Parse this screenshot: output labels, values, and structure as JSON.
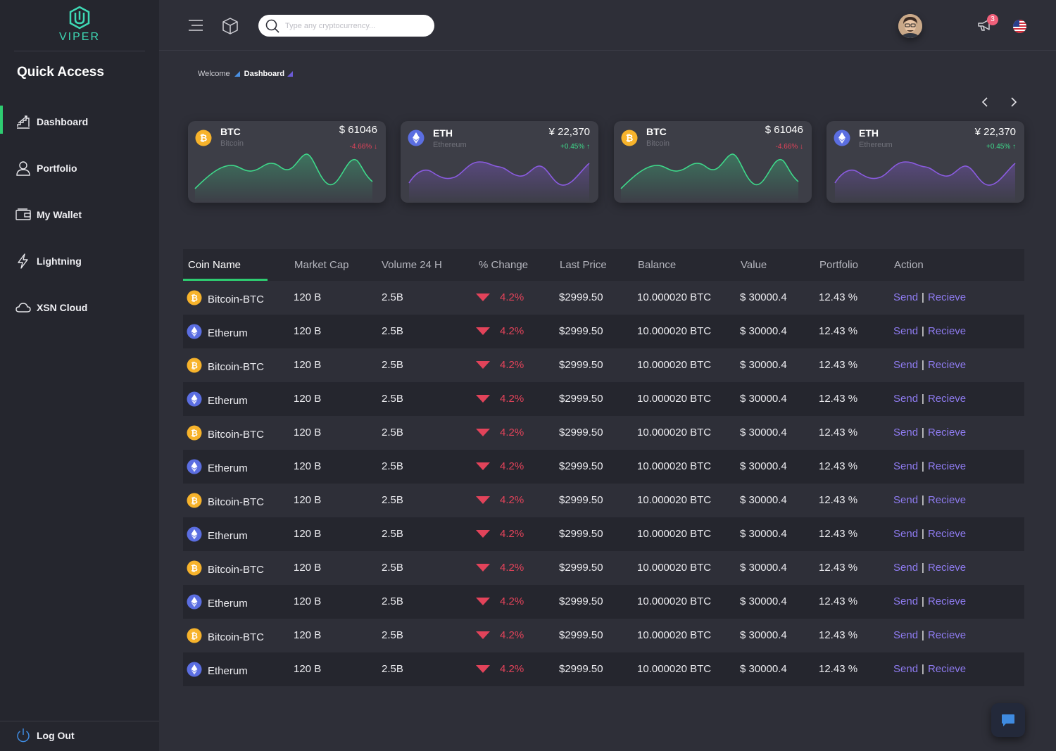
{
  "app": {
    "logo_text": "VIPER",
    "accent": "#2ecc71"
  },
  "sidebar": {
    "heading": "Quick Access",
    "items": [
      {
        "label": "Dashboard",
        "icon": "chart-stairs-icon",
        "active": true
      },
      {
        "label": "Portfolio",
        "icon": "user-icon"
      },
      {
        "label": "My Wallet",
        "icon": "wallet-icon"
      },
      {
        "label": "Lightning",
        "icon": "lightning-icon"
      },
      {
        "label": "XSN Cloud",
        "icon": "cloud-icon"
      }
    ],
    "logout_label": "Log Out"
  },
  "header": {
    "search_placeholder": "Type any cryptocurrency...",
    "notification_count": "3"
  },
  "breadcrumb": {
    "root": "Welcome",
    "current": "Dashboard"
  },
  "cards": [
    {
      "symbol": "BTC",
      "name": "Bitcoin",
      "price": "$ 61046",
      "change": "-4.66%",
      "direction": "down",
      "coin": "btc"
    },
    {
      "symbol": "ETH",
      "name": "Ethereum",
      "price": "¥ 22,370",
      "change": "+0.45%",
      "direction": "up",
      "coin": "eth"
    },
    {
      "symbol": "BTC",
      "name": "Bitcoin",
      "price": "$ 61046",
      "change": "-4.66%",
      "direction": "down",
      "coin": "btc"
    },
    {
      "symbol": "ETH",
      "name": "Ethereum",
      "price": "¥ 22,370",
      "change": "+0.45%",
      "direction": "up",
      "coin": "eth"
    }
  ],
  "table": {
    "headers": [
      "Coin Name",
      "Market Cap",
      "Volume 24 H",
      "% Change",
      "Last Price",
      "Balance",
      "Value",
      "Portfolio",
      "Action"
    ],
    "send_label": "Send",
    "receive_label": "Recieve",
    "rows": [
      {
        "coin": "btc",
        "name": "Bitcoin-BTC",
        "market_cap": "120 B",
        "volume": "2.5B",
        "change": "4.2%",
        "last_price": "$2999.50",
        "balance": "10.000020 BTC",
        "value": "$ 30000.4",
        "portfolio": "12.43 %"
      },
      {
        "coin": "eth",
        "name": "Etherum",
        "market_cap": "120 B",
        "volume": "2.5B",
        "change": "4.2%",
        "last_price": "$2999.50",
        "balance": "10.000020 BTC",
        "value": "$ 30000.4",
        "portfolio": "12.43 %"
      },
      {
        "coin": "btc",
        "name": "Bitcoin-BTC",
        "market_cap": "120 B",
        "volume": "2.5B",
        "change": "4.2%",
        "last_price": "$2999.50",
        "balance": "10.000020 BTC",
        "value": "$ 30000.4",
        "portfolio": "12.43 %"
      },
      {
        "coin": "eth",
        "name": "Etherum",
        "market_cap": "120 B",
        "volume": "2.5B",
        "change": "4.2%",
        "last_price": "$2999.50",
        "balance": "10.000020 BTC",
        "value": "$ 30000.4",
        "portfolio": "12.43 %"
      },
      {
        "coin": "btc",
        "name": "Bitcoin-BTC",
        "market_cap": "120 B",
        "volume": "2.5B",
        "change": "4.2%",
        "last_price": "$2999.50",
        "balance": "10.000020 BTC",
        "value": "$ 30000.4",
        "portfolio": "12.43 %"
      },
      {
        "coin": "eth",
        "name": "Etherum",
        "market_cap": "120 B",
        "volume": "2.5B",
        "change": "4.2%",
        "last_price": "$2999.50",
        "balance": "10.000020 BTC",
        "value": "$ 30000.4",
        "portfolio": "12.43 %"
      },
      {
        "coin": "btc",
        "name": "Bitcoin-BTC",
        "market_cap": "120 B",
        "volume": "2.5B",
        "change": "4.2%",
        "last_price": "$2999.50",
        "balance": "10.000020 BTC",
        "value": "$ 30000.4",
        "portfolio": "12.43 %"
      },
      {
        "coin": "eth",
        "name": "Etherum",
        "market_cap": "120 B",
        "volume": "2.5B",
        "change": "4.2%",
        "last_price": "$2999.50",
        "balance": "10.000020 BTC",
        "value": "$ 30000.4",
        "portfolio": "12.43 %"
      },
      {
        "coin": "btc",
        "name": "Bitcoin-BTC",
        "market_cap": "120 B",
        "volume": "2.5B",
        "change": "4.2%",
        "last_price": "$2999.50",
        "balance": "10.000020 BTC",
        "value": "$ 30000.4",
        "portfolio": "12.43 %"
      },
      {
        "coin": "eth",
        "name": "Etherum",
        "market_cap": "120 B",
        "volume": "2.5B",
        "change": "4.2%",
        "last_price": "$2999.50",
        "balance": "10.000020 BTC",
        "value": "$ 30000.4",
        "portfolio": "12.43 %"
      },
      {
        "coin": "btc",
        "name": "Bitcoin-BTC",
        "market_cap": "120 B",
        "volume": "2.5B",
        "change": "4.2%",
        "last_price": "$2999.50",
        "balance": "10.000020 BTC",
        "value": "$ 30000.4",
        "portfolio": "12.43 %"
      },
      {
        "coin": "eth",
        "name": "Etherum",
        "market_cap": "120 B",
        "volume": "2.5B",
        "change": "4.2%",
        "last_price": "$2999.50",
        "balance": "10.000020 BTC",
        "value": "$ 30000.4",
        "portfolio": "12.43 %"
      }
    ]
  },
  "colors": {
    "btc": "#f7b32b",
    "eth": "#5b6ee1",
    "negative": "#e2435a",
    "positive": "#3ed88a",
    "link": "#8e7bf0"
  }
}
